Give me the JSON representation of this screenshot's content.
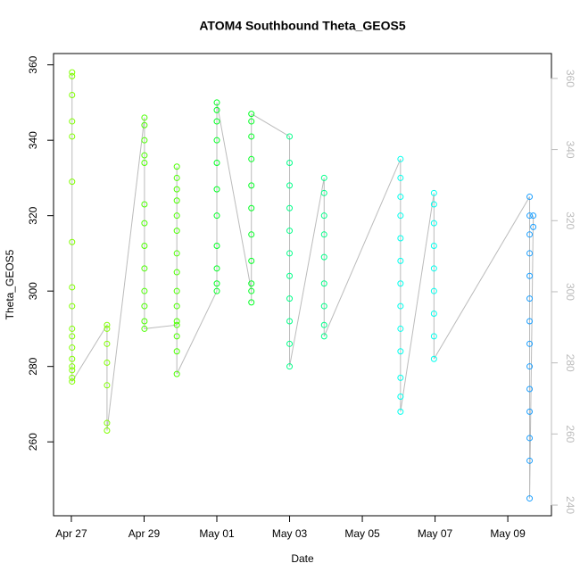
{
  "chart_data": {
    "type": "scatter",
    "title": "ATOM4 Southbound Theta_GEOS5",
    "x_label": "Date",
    "y_label": "Theta_GEOS5",
    "xlim": [
      -0.49,
      13.2
    ],
    "xticks": [
      {
        "value": 0,
        "label": "Apr 27"
      },
      {
        "value": 2,
        "label": "Apr 29"
      },
      {
        "value": 4,
        "label": "May 01"
      },
      {
        "value": 6,
        "label": "May 03"
      },
      {
        "value": 8,
        "label": "May 05"
      },
      {
        "value": 10,
        "label": "May 07"
      },
      {
        "value": 12,
        "label": "May 09"
      }
    ],
    "ylim": [
      240.4,
      363
    ],
    "yticks": [
      260,
      280,
      300,
      320,
      340,
      360
    ],
    "y2lim": [
      237,
      367
    ],
    "y2ticks": [
      240,
      260,
      280,
      300,
      320,
      340,
      360
    ],
    "line_color": "#bbbbbb",
    "series": [
      {
        "color": "#80ff00",
        "x": [
          0.02,
          0.02,
          0.02,
          0.02,
          0.02,
          0.02,
          0.02,
          0.02,
          0.02,
          0.02,
          0.02,
          0.02,
          0.02,
          0.02,
          0.02,
          0.02,
          0.02,
          0.98,
          0.98,
          0.98,
          0.98,
          0.98,
          0.98,
          0.98
        ],
        "values": [
          358,
          357,
          352,
          345,
          341,
          329,
          313,
          301,
          296,
          290,
          288,
          285,
          282,
          280,
          279,
          277,
          276,
          291,
          290,
          286,
          281,
          275,
          265,
          263
        ]
      },
      {
        "color": "#4cff00",
        "x": [
          2.01,
          2.01,
          2.01,
          2.01,
          2.01,
          2.01,
          2.01,
          2.01,
          2.01,
          2.01,
          2.01,
          2.01,
          2.01,
          2.9,
          2.9,
          2.9,
          2.9,
          2.9,
          2.9,
          2.9,
          2.9,
          2.9,
          2.9,
          2.9,
          2.9,
          2.9,
          2.9,
          2.9
        ],
        "values": [
          346,
          344,
          340,
          336,
          334,
          323,
          318,
          312,
          306,
          300,
          296,
          292,
          290,
          291,
          333,
          330,
          327,
          324,
          320,
          316,
          310,
          305,
          300,
          296,
          292,
          288,
          284,
          278
        ]
      },
      {
        "color": "#00ff22",
        "x": [
          4.0,
          4.0,
          4.0,
          4.0,
          4.0,
          4.0,
          4.0,
          4.0,
          4.0,
          4.0,
          4.0,
          4.95,
          4.95,
          4.95,
          4.95,
          4.95,
          4.95,
          4.95,
          4.95,
          4.95,
          4.95,
          4.95
        ],
        "values": [
          300,
          302,
          306,
          312,
          320,
          327,
          334,
          340,
          345,
          348,
          350,
          300,
          297,
          302,
          308,
          315,
          322,
          328,
          335,
          341,
          345,
          347
        ]
      },
      {
        "color": "#00ff88",
        "x": [
          6.0,
          6.0,
          6.0,
          6.0,
          6.0,
          6.0,
          6.0,
          6.0,
          6.0,
          6.0,
          6.0,
          6.95,
          6.95,
          6.95,
          6.95,
          6.95,
          6.95,
          6.95,
          6.95,
          6.95
        ],
        "values": [
          341,
          334,
          328,
          322,
          316,
          310,
          304,
          298,
          292,
          286,
          280,
          330,
          326,
          320,
          315,
          309,
          302,
          296,
          291,
          288
        ]
      },
      {
        "color": "#00ffee",
        "x": [
          9.05,
          9.05,
          9.05,
          9.05,
          9.05,
          9.05,
          9.05,
          9.05,
          9.05,
          9.05,
          9.05,
          9.05,
          9.05,
          9.97,
          9.97,
          9.97,
          9.97,
          9.97,
          9.97,
          9.97,
          9.97,
          9.97
        ],
        "values": [
          335,
          330,
          325,
          320,
          314,
          308,
          302,
          296,
          290,
          284,
          277,
          272,
          268,
          326,
          323,
          318,
          312,
          306,
          300,
          294,
          288,
          282
        ]
      },
      {
        "color": "#1a9fff",
        "x": [
          12.6,
          12.6,
          12.6,
          12.6,
          12.6,
          12.6,
          12.6,
          12.6,
          12.6,
          12.6,
          12.6,
          12.6,
          12.6,
          12.6,
          12.7,
          12.7
        ],
        "values": [
          325,
          320,
          315,
          310,
          304,
          298,
          292,
          286,
          280,
          274,
          268,
          261,
          255,
          245,
          320,
          317
        ]
      }
    ]
  }
}
